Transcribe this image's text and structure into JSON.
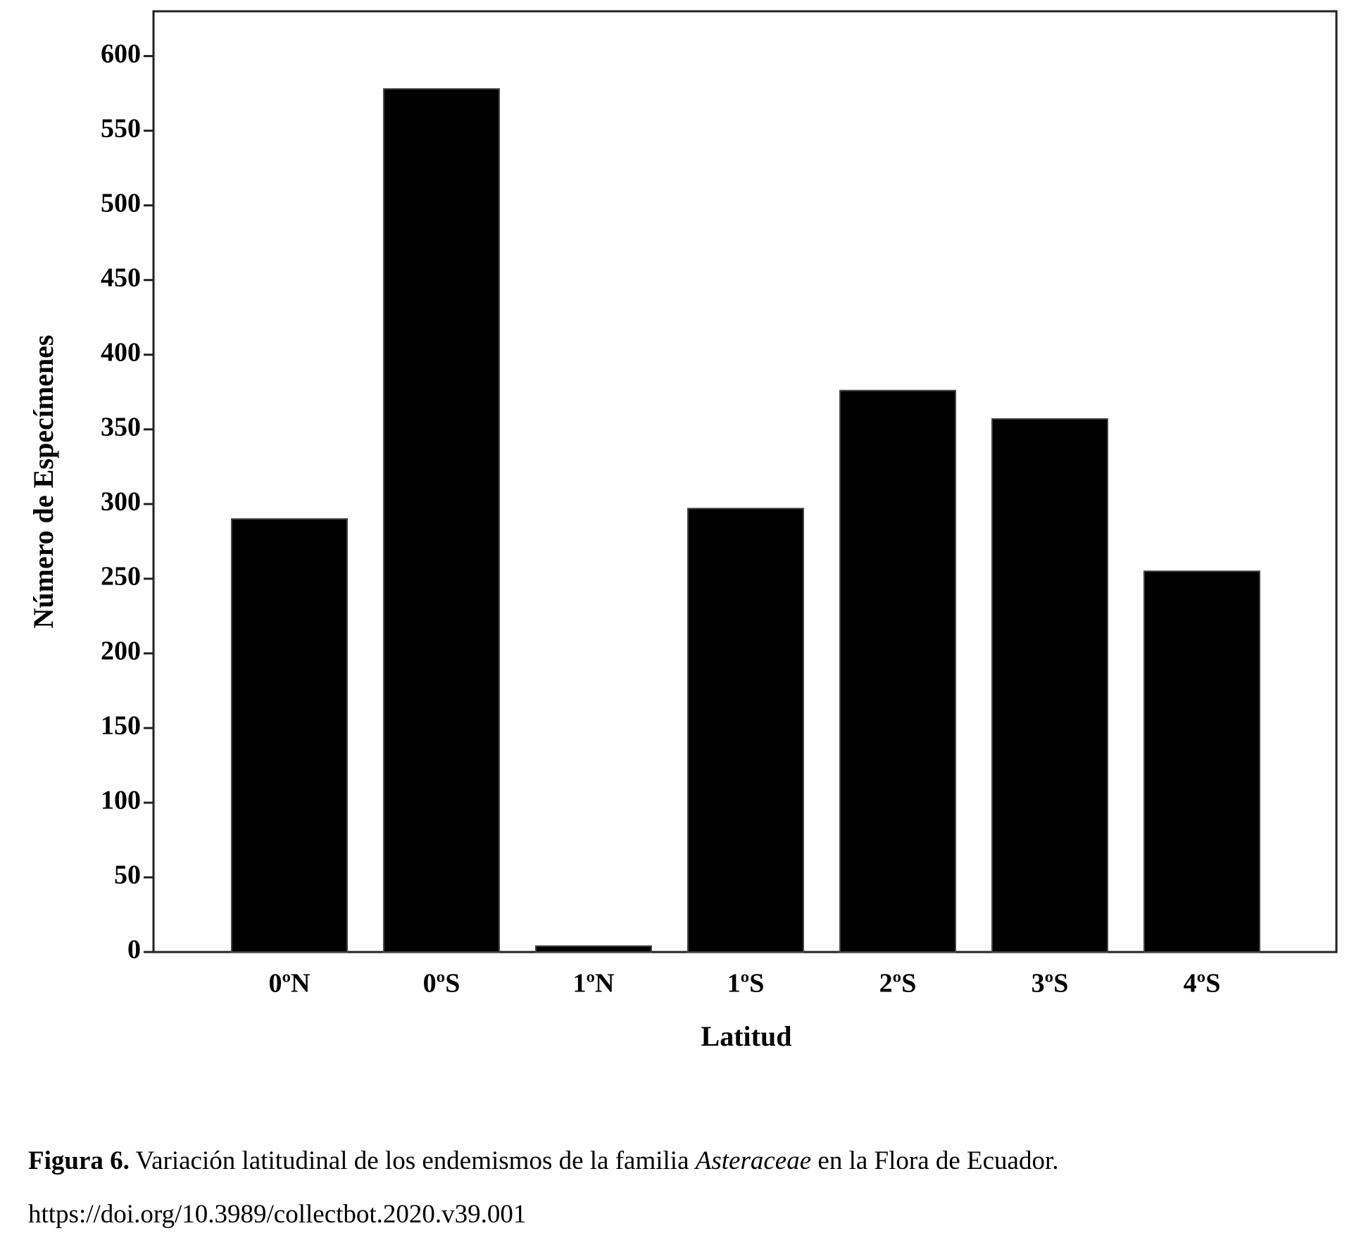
{
  "chart_data": {
    "type": "bar",
    "x_label": "Latitud",
    "y_label": "Número de Especímenes",
    "categories": [
      "0ºN",
      "0ºS",
      "1ºN",
      "1ºS",
      "2ºS",
      "3ºS",
      "4ºS"
    ],
    "values": [
      290,
      578,
      4,
      297,
      376,
      357,
      255
    ],
    "color": "#000000",
    "ylim": [
      0,
      630
    ],
    "yticks": [
      0,
      50,
      100,
      150,
      200,
      250,
      300,
      350,
      400,
      450,
      500,
      550,
      600
    ]
  },
  "caption": {
    "label": "Figura 6.",
    "text": " Variación latitudinal de los endemismos de la familia ",
    "italic": "Asteraceae",
    "text_end": " en la Flora de Ecuador.",
    "doi": "https://doi.org/10.3989/collectbot.2020.v39.001"
  }
}
